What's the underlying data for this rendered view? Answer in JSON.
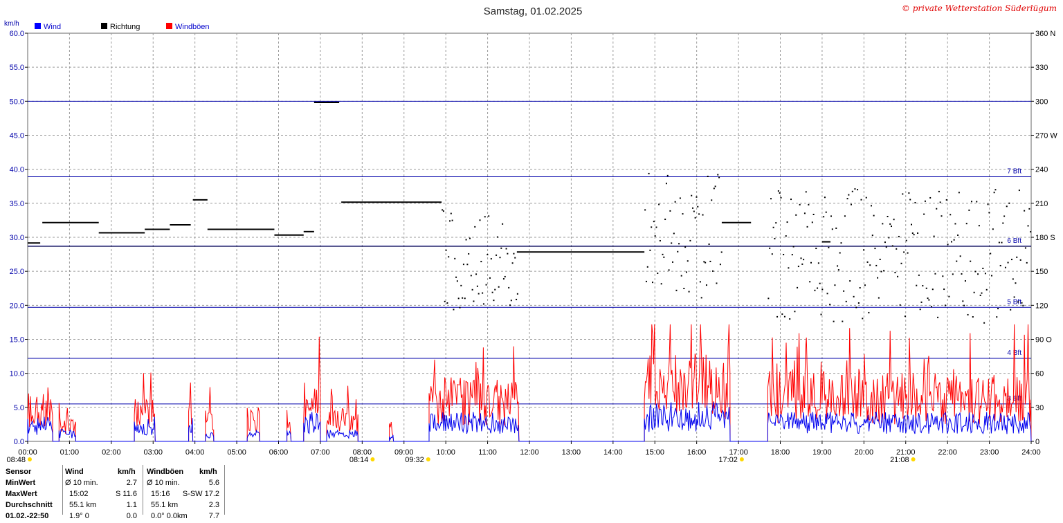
{
  "header": {
    "title": "Samstag, 01.02.2025",
    "copyright": "© private Wetterstation Süderlügum",
    "unit_left": "km/h"
  },
  "legend": [
    {
      "label": "Wind",
      "color": "#0000ff"
    },
    {
      "label": "Richtung",
      "color": "#000000"
    },
    {
      "label": "Windböen",
      "color": "#ff0000"
    }
  ],
  "colors": {
    "wind": "#0000ee",
    "gust": "#ff0000",
    "direction": "#000000",
    "bft_line": "#0000aa",
    "grid": "#9a9a9a"
  },
  "chart_data": {
    "type": "line",
    "x_range": [
      "00:00",
      "24:00"
    ],
    "x_ticks": [
      "00:00",
      "01:00",
      "02:00",
      "03:00",
      "04:00",
      "05:00",
      "06:00",
      "07:00",
      "08:00",
      "09:00",
      "10:00",
      "11:00",
      "12:00",
      "13:00",
      "14:00",
      "15:00",
      "16:00",
      "17:00",
      "18:00",
      "19:00",
      "20:00",
      "21:00",
      "22:00",
      "23:00",
      "24:00"
    ],
    "y_left": {
      "label": "km/h",
      "range": [
        0,
        60
      ],
      "ticks": [
        "0.0",
        "5.0",
        "10.0",
        "15.0",
        "20.0",
        "25.0",
        "30.0",
        "35.0",
        "40.0",
        "45.0",
        "50.0",
        "55.0",
        "60.0"
      ]
    },
    "y_right": {
      "range": [
        0,
        360
      ],
      "ticks": [
        "0",
        "30",
        "60",
        "90 O",
        "120",
        "150",
        "180 S",
        "210",
        "240",
        "270 W",
        "300",
        "330",
        "360 N"
      ]
    },
    "grid": true,
    "beaufort_lines": [
      {
        "label": "3 Bft",
        "value": 5.5
      },
      {
        "label": "4 Bft",
        "value": 12.2
      },
      {
        "label": "5 Bft",
        "value": 19.7
      },
      {
        "label": "6 Bft",
        "value": 28.7
      },
      {
        "label": "7 Bft",
        "value": 38.9
      },
      {
        "label": "",
        "value": 50.0
      }
    ],
    "sun_events": [
      {
        "label": "08:48",
        "hour": 0.0
      },
      {
        "label": "08:14",
        "hour": 8.2
      },
      {
        "label": "09:32",
        "hour": 9.53
      },
      {
        "label": "17:02",
        "hour": 17.03
      },
      {
        "label": "21:08",
        "hour": 21.13
      }
    ],
    "wind_series": [
      {
        "name": "Wind",
        "segments": [
          {
            "from": 0.0,
            "to": 0.6,
            "level": 2.5
          },
          {
            "from": 0.75,
            "to": 1.15,
            "level": 1.2
          },
          {
            "from": 2.55,
            "to": 3.05,
            "level": 2.5
          },
          {
            "from": 3.85,
            "to": 3.95,
            "level": 2.5
          },
          {
            "from": 4.25,
            "to": 4.45,
            "level": 1.2
          },
          {
            "from": 5.25,
            "to": 5.55,
            "level": 1.2
          },
          {
            "from": 6.2,
            "to": 6.3,
            "level": 1.2
          },
          {
            "from": 6.6,
            "to": 7.0,
            "level": 3.0
          },
          {
            "from": 7.15,
            "to": 7.9,
            "level": 1.2
          },
          {
            "from": 8.65,
            "to": 8.75,
            "level": 0.8
          },
          {
            "from": 9.6,
            "to": 11.75,
            "level": 3.0
          },
          {
            "from": 14.75,
            "to": 16.8,
            "level": 4.0
          },
          {
            "from": 17.7,
            "to": 24.0,
            "level": 3.0
          }
        ]
      },
      {
        "name": "Windböen",
        "segments": [
          {
            "from": 0.0,
            "to": 0.6,
            "level": 5.0
          },
          {
            "from": 0.75,
            "to": 1.15,
            "level": 2.5
          },
          {
            "from": 2.55,
            "to": 3.05,
            "level": 4.5
          },
          {
            "from": 3.85,
            "to": 3.95,
            "level": 6.0
          },
          {
            "from": 4.25,
            "to": 4.45,
            "level": 3.5
          },
          {
            "from": 5.25,
            "to": 5.55,
            "level": 3.5
          },
          {
            "from": 6.2,
            "to": 6.3,
            "level": 3.5
          },
          {
            "from": 6.6,
            "to": 7.0,
            "level": 6.5
          },
          {
            "from": 7.15,
            "to": 7.9,
            "level": 3.5
          },
          {
            "from": 8.65,
            "to": 8.75,
            "level": 2.0
          },
          {
            "from": 9.6,
            "to": 11.75,
            "level": 6.5
          },
          {
            "from": 14.75,
            "to": 16.8,
            "level": 9.0
          },
          {
            "from": 17.7,
            "to": 24.0,
            "level": 7.0
          }
        ]
      }
    ],
    "direction_series": {
      "name": "Richtung",
      "steps": [
        {
          "from": 0.0,
          "to": 0.3,
          "deg": 175
        },
        {
          "from": 0.35,
          "to": 1.7,
          "deg": 193
        },
        {
          "from": 1.7,
          "to": 2.8,
          "deg": 184
        },
        {
          "from": 2.8,
          "to": 3.4,
          "deg": 187
        },
        {
          "from": 3.4,
          "to": 3.9,
          "deg": 191
        },
        {
          "from": 3.95,
          "to": 4.3,
          "deg": 213
        },
        {
          "from": 4.3,
          "to": 5.9,
          "deg": 187
        },
        {
          "from": 5.9,
          "to": 6.6,
          "deg": 182
        },
        {
          "from": 6.6,
          "to": 6.85,
          "deg": 185
        },
        {
          "from": 6.85,
          "to": 7.45,
          "deg": 299
        },
        {
          "from": 7.5,
          "to": 9.9,
          "deg": 211
        },
        {
          "from": 11.7,
          "to": 14.75,
          "deg": 167
        },
        {
          "from": 16.6,
          "to": 17.3,
          "deg": 193
        },
        {
          "from": 19.0,
          "to": 19.2,
          "deg": 176
        }
      ],
      "scatter_windows": [
        {
          "from": 9.9,
          "to": 11.7,
          "min": 115,
          "max": 205
        },
        {
          "from": 14.75,
          "to": 16.6,
          "min": 125,
          "max": 240
        },
        {
          "from": 17.7,
          "to": 24.0,
          "min": 105,
          "max": 225
        }
      ]
    }
  },
  "stats": {
    "headers": [
      "Sensor",
      "Wind",
      "km/h",
      "Windböen",
      "km/h"
    ],
    "rows": [
      {
        "label": "MinWert",
        "wind_time": "Ø 10 min.",
        "wind_val": "2.7",
        "gust_time": "Ø 10 min.",
        "gust_val": "5.6"
      },
      {
        "label": "MaxWert",
        "wind_time": "15:02",
        "wind_val": "S 11.6",
        "gust_time": "15:16",
        "gust_val": "S-SW 17.2"
      },
      {
        "label": "Durchschnitt",
        "wind_time": "55.1 km",
        "wind_val": "1.1",
        "gust_time": "55.1 km",
        "gust_val": "2.3"
      },
      {
        "label": "01.02.-22:50",
        "wind_time": "1.9° 0",
        "wind_val": "0.0",
        "gust_time": "0.0° 0.0km",
        "gust_val": "7.7"
      }
    ]
  }
}
